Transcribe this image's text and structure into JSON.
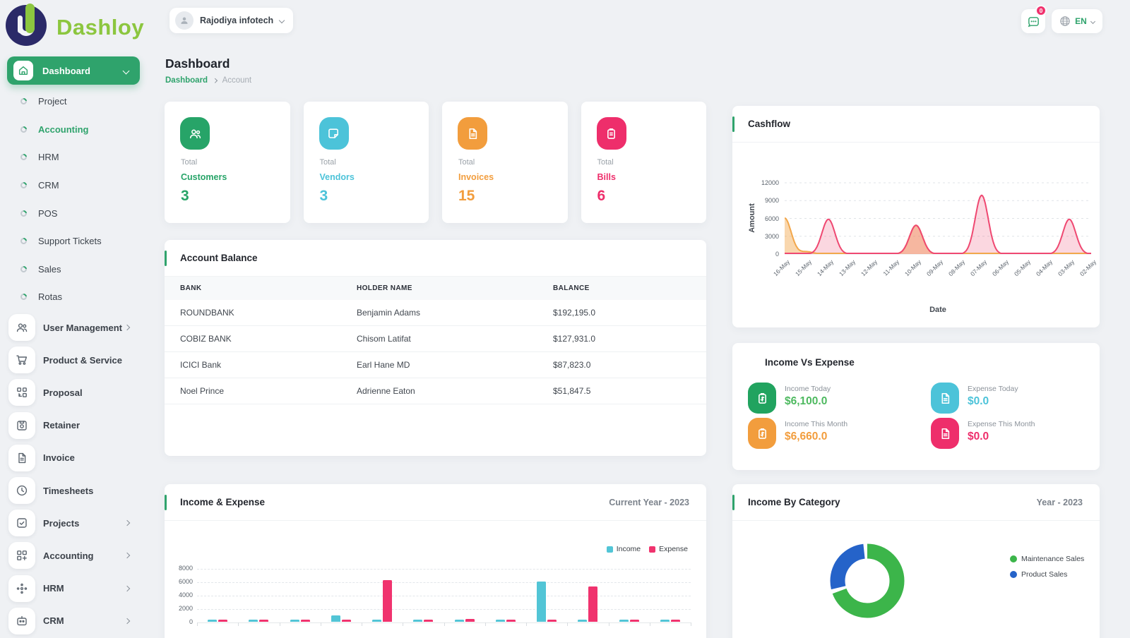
{
  "brand": {
    "name": "Dashloy"
  },
  "topbar": {
    "company": "Rajodiya infotech",
    "chat_badge": "0",
    "language": "EN"
  },
  "page": {
    "title": "Dashboard",
    "breadcrumb": [
      "Dashboard",
      "Account"
    ]
  },
  "sidebar": {
    "dashboard_label": "Dashboard",
    "sub_items": [
      {
        "label": "Project",
        "active": false
      },
      {
        "label": "Accounting",
        "active": true
      },
      {
        "label": "HRM",
        "active": false
      },
      {
        "label": "CRM",
        "active": false
      },
      {
        "label": "POS",
        "active": false
      },
      {
        "label": "Support Tickets",
        "active": false
      },
      {
        "label": "Sales",
        "active": false
      },
      {
        "label": "Rotas",
        "active": false
      }
    ],
    "items": [
      {
        "label": "User Management",
        "icon": "users",
        "chevron": true
      },
      {
        "label": "Product & Service",
        "icon": "cart",
        "chevron": false
      },
      {
        "label": "Proposal",
        "icon": "proposal",
        "chevron": false
      },
      {
        "label": "Retainer",
        "icon": "retainer",
        "chevron": false
      },
      {
        "label": "Invoice",
        "icon": "invoice",
        "chevron": false
      },
      {
        "label": "Timesheets",
        "icon": "clock",
        "chevron": false
      },
      {
        "label": "Projects",
        "icon": "projects",
        "chevron": true
      },
      {
        "label": "Accounting",
        "icon": "accounting",
        "chevron": true
      },
      {
        "label": "HRM",
        "icon": "hrm",
        "chevron": true
      },
      {
        "label": "CRM",
        "icon": "crm",
        "chevron": true
      }
    ]
  },
  "stats": [
    {
      "top": "Total",
      "label": "Customers",
      "value": "3",
      "color": "#27a468",
      "icon": "users"
    },
    {
      "top": "Total",
      "label": "Vendors",
      "value": "3",
      "color": "#4cc3d9",
      "icon": "note"
    },
    {
      "top": "Total",
      "label": "Invoices",
      "value": "15",
      "color": "#f29d3d",
      "icon": "file"
    },
    {
      "top": "Total",
      "label": "Bills",
      "value": "6",
      "color": "#ee2e6b",
      "icon": "bill"
    }
  ],
  "account_balance": {
    "title": "Account Balance",
    "headers": [
      "BANK",
      "HOLDER NAME",
      "BALANCE"
    ],
    "rows": [
      [
        "ROUNDBANK",
        "Benjamin Adams",
        "$192,195.0"
      ],
      [
        "COBIZ BANK",
        "Chisom Latifat",
        "$127,931.0"
      ],
      [
        "ICICI Bank",
        "Earl Hane MD",
        "$87,823.0"
      ],
      [
        "Noel Prince",
        "Adrienne Eaton",
        "$51,847.5"
      ]
    ]
  },
  "income_vs_expense": {
    "title": "Income Vs Expense",
    "items": [
      {
        "label": "Income Today",
        "value": "$6,100.0",
        "color": "#21a35f",
        "value_color": "#4db95f",
        "icon": "clipboard"
      },
      {
        "label": "Expense Today",
        "value": "$0.0",
        "color": "#4cc3d9",
        "value_color": "#4cc3d9",
        "icon": "file"
      },
      {
        "label": "Income This Month",
        "value": "$6,660.0",
        "color": "#f29d3d",
        "value_color": "#f29d3d",
        "icon": "clipboard"
      },
      {
        "label": "Expense This Month",
        "value": "$0.0",
        "color": "#ee2e6b",
        "value_color": "#ee2e6b",
        "icon": "file"
      }
    ]
  },
  "chart_data": [
    {
      "name": "cashflow",
      "type": "area",
      "title": "Cashflow",
      "xlabel": "Date",
      "ylabel": "Amount",
      "ylim": [
        0,
        12000
      ],
      "yticks": [
        12000,
        9000,
        6000,
        3000,
        0
      ],
      "x": [
        "16-May",
        "15-May",
        "14-May",
        "13-May",
        "12-May",
        "11-May",
        "10-May",
        "09-May",
        "08-May",
        "07-May",
        "06-May",
        "05-May",
        "04-May",
        "03-May",
        "02-May"
      ],
      "series": [
        {
          "name": "orange-series",
          "color": "#f2a74b",
          "fill": "rgba(242,167,75,0.45)",
          "values": [
            6000,
            400,
            0,
            0,
            0,
            0,
            4800,
            0,
            0,
            0,
            0,
            0,
            0,
            0,
            0
          ]
        },
        {
          "name": "pink-series",
          "color": "#ef4871",
          "fill": "rgba(239,72,113,0.22)",
          "values": [
            0,
            0,
            5800,
            0,
            0,
            0,
            4800,
            0,
            0,
            9800,
            0,
            0,
            0,
            5800,
            0
          ]
        }
      ]
    },
    {
      "name": "income_expense",
      "type": "bar",
      "title": "Income & Expense",
      "subtitle": "Current Year - 2023",
      "ylim": [
        0,
        8000
      ],
      "yticks": [
        8000,
        6000,
        4000,
        2000,
        0
      ],
      "series": [
        {
          "name": "Income",
          "color": "#52c5d6",
          "values": [
            200,
            120,
            120,
            950,
            120,
            120,
            200,
            120,
            6100,
            120,
            120,
            120
          ]
        },
        {
          "name": "Expense",
          "color": "#f0336e",
          "values": [
            120,
            120,
            120,
            120,
            6300,
            120,
            480,
            120,
            120,
            5300,
            120,
            120
          ]
        }
      ]
    },
    {
      "name": "income_by_category",
      "type": "pie",
      "title": "Income By Category",
      "subtitle": "Year - 2023",
      "slices": [
        {
          "label": "Maintenance Sales",
          "color": "#3cb54a",
          "percent": 72
        },
        {
          "label": "Product Sales",
          "color": "#2563c9",
          "percent": 28
        }
      ]
    }
  ]
}
